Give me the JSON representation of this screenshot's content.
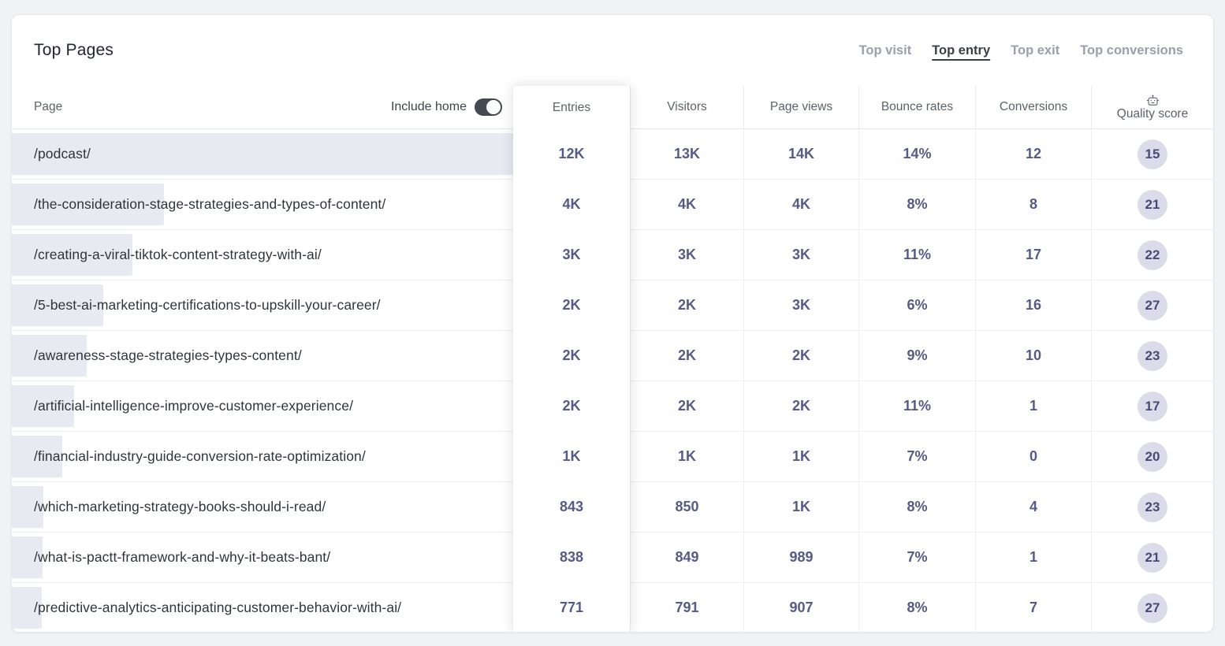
{
  "header": {
    "title": "Top Pages",
    "tabs": [
      {
        "label": "Top visit",
        "active": false
      },
      {
        "label": "Top entry",
        "active": true
      },
      {
        "label": "Top exit",
        "active": false
      },
      {
        "label": "Top conversions",
        "active": false
      }
    ]
  },
  "table": {
    "columns": {
      "page": "Page",
      "entries": "Entries",
      "visitors": "Visitors",
      "page_views": "Page views",
      "bounce_rates": "Bounce rates",
      "conversions": "Conversions",
      "quality_score": "Quality score"
    },
    "include_home": {
      "label": "Include home",
      "enabled": true
    },
    "quality_icon": "robot-icon",
    "rows": [
      {
        "page": "/podcast/",
        "bar_pct": 100,
        "entries": "12K",
        "visitors": "13K",
        "page_views": "14K",
        "bounce_rate": "14%",
        "conversions": "12",
        "quality_score": "15"
      },
      {
        "page": "/the-consideration-stage-strategies-and-types-of-content/",
        "bar_pct": 30.3,
        "entries": "4K",
        "visitors": "4K",
        "page_views": "4K",
        "bounce_rate": "8%",
        "conversions": "8",
        "quality_score": "21"
      },
      {
        "page": "/creating-a-viral-tiktok-content-strategy-with-ai/",
        "bar_pct": 24.1,
        "entries": "3K",
        "visitors": "3K",
        "page_views": "3K",
        "bounce_rate": "11%",
        "conversions": "17",
        "quality_score": "22"
      },
      {
        "page": "/5-best-ai-marketing-certifications-to-upskill-your-career/",
        "bar_pct": 18.2,
        "entries": "2K",
        "visitors": "2K",
        "page_views": "3K",
        "bounce_rate": "6%",
        "conversions": "16",
        "quality_score": "27"
      },
      {
        "page": "/awareness-stage-strategies-types-content/",
        "bar_pct": 15.0,
        "entries": "2K",
        "visitors": "2K",
        "page_views": "2K",
        "bounce_rate": "9%",
        "conversions": "10",
        "quality_score": "23"
      },
      {
        "page": "/artificial-intelligence-improve-customer-experience/",
        "bar_pct": 12.4,
        "entries": "2K",
        "visitors": "2K",
        "page_views": "2K",
        "bounce_rate": "11%",
        "conversions": "1",
        "quality_score": "17"
      },
      {
        "page": "/financial-industry-guide-conversion-rate-optimization/",
        "bar_pct": 10.0,
        "entries": "1K",
        "visitors": "1K",
        "page_views": "1K",
        "bounce_rate": "7%",
        "conversions": "0",
        "quality_score": "20"
      },
      {
        "page": "/which-marketing-strategy-books-should-i-read/",
        "bar_pct": 6.3,
        "entries": "843",
        "visitors": "850",
        "page_views": "1K",
        "bounce_rate": "8%",
        "conversions": "4",
        "quality_score": "23"
      },
      {
        "page": "/what-is-pactt-framework-and-why-it-beats-bant/",
        "bar_pct": 6.2,
        "entries": "838",
        "visitors": "849",
        "page_views": "989",
        "bounce_rate": "7%",
        "conversions": "1",
        "quality_score": "21"
      },
      {
        "page": "/predictive-analytics-anticipating-customer-behavior-with-ai/",
        "bar_pct": 5.9,
        "entries": "771",
        "visitors": "791",
        "page_views": "907",
        "bounce_rate": "8%",
        "conversions": "7",
        "quality_score": "27"
      }
    ]
  },
  "colors": {
    "accent_text": "#555a87",
    "bar_fill": "#e9e9f1",
    "badge_bg": "#dcdbe9",
    "toggle_on": "#44494f",
    "active_tab": "#3b4047",
    "inactive_tab": "#9aa0aa"
  }
}
